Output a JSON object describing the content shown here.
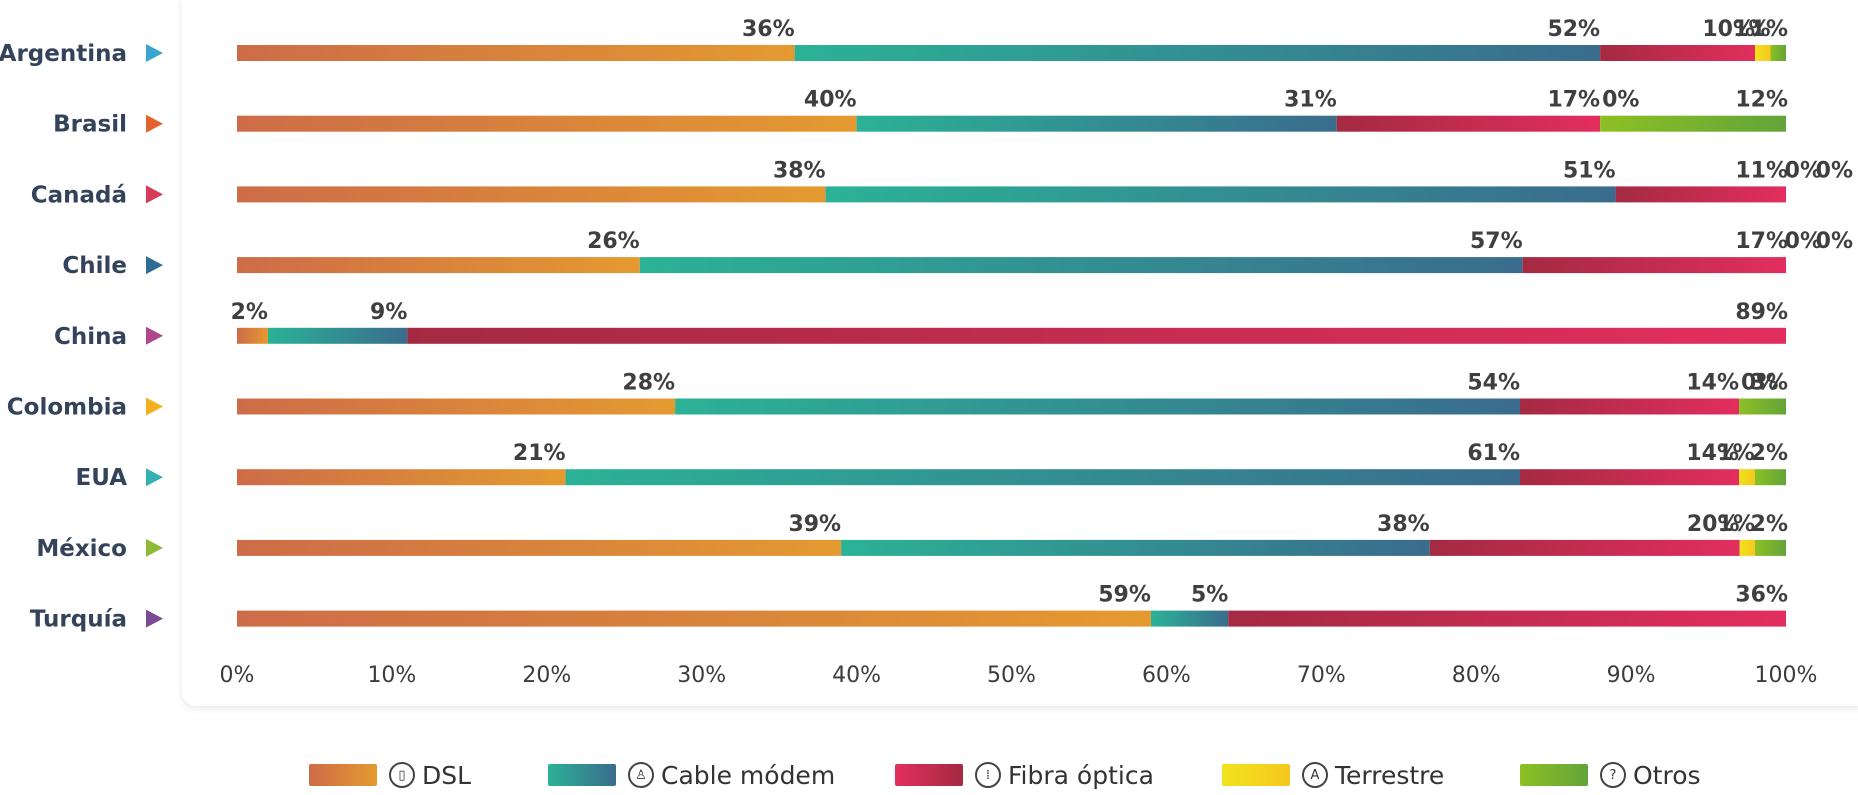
{
  "chart_data": {
    "type": "bar",
    "orientation": "horizontal",
    "stacked": true,
    "percent_stacked": true,
    "categories": [
      "Argentina",
      "Brasil",
      "Canadá",
      "Chile",
      "China",
      "Colombia",
      "EUA",
      "México",
      "Turquía"
    ],
    "category_marker_colors": [
      "#3aa6d0",
      "#e3612a",
      "#d83a5a",
      "#2f6c93",
      "#b0468e",
      "#f3b11e",
      "#35b0b3",
      "#8dbd33",
      "#7c4a93"
    ],
    "series": [
      {
        "name": "DSL",
        "icon": "phone-icon",
        "colors": [
          "#cd6c48",
          "#e49a30"
        ],
        "values": [
          36,
          40,
          38,
          26,
          2,
          28,
          21,
          39,
          59
        ],
        "labels": [
          "36%",
          "40%",
          "38%",
          "26%",
          "2%",
          "28%",
          "21%",
          "39%",
          "59%"
        ]
      },
      {
        "name": "Cable módem",
        "icon": "cable-modem-icon",
        "colors": [
          "#2bb296",
          "#3a6c8d"
        ],
        "values": [
          52,
          31,
          51,
          57,
          9,
          54,
          61,
          38,
          5
        ],
        "labels": [
          "52%",
          "31%",
          "51%",
          "57%",
          "9%",
          "54%",
          "61%",
          "38%",
          "5%"
        ]
      },
      {
        "name": "Fibra óptica",
        "icon": "fiber-icon",
        "colors": [
          "#a42a42",
          "#e22e5e"
        ],
        "values": [
          10,
          17,
          11,
          17,
          89,
          14,
          14,
          20,
          36
        ],
        "labels": [
          "10%",
          "17%",
          "11%",
          "17%",
          "89%",
          "14%",
          "14%",
          "20%",
          "36%"
        ]
      },
      {
        "name": "Terrestre",
        "icon": "antenna-icon",
        "colors": [
          "#f2e21d",
          "#f5c81e"
        ],
        "values": [
          1,
          0,
          0,
          0,
          0,
          0,
          1,
          1,
          0
        ],
        "labels": [
          "1%",
          "0%",
          "0%",
          "0%",
          null,
          "0%",
          "1%",
          "1%",
          null
        ]
      },
      {
        "name": "Otros",
        "icon": "question-icon",
        "colors": [
          "#8dc023",
          "#63a43a"
        ],
        "values": [
          1,
          12,
          0,
          0,
          0,
          3,
          2,
          2,
          0
        ],
        "labels": [
          "1%",
          "12%",
          "0%",
          "0%",
          null,
          "3%",
          "2%",
          "2%",
          null
        ]
      }
    ],
    "xlim": [
      0,
      100
    ],
    "x_ticks": [
      "0%",
      "10%",
      "20%",
      "30%",
      "40%",
      "50%",
      "60%",
      "70%",
      "80%",
      "90%",
      "100%"
    ],
    "grid": false,
    "legend_position": "bottom"
  },
  "legend": {
    "items": [
      {
        "label": "DSL",
        "glyph": "▯"
      },
      {
        "label": "Cable módem",
        "glyph": "♙"
      },
      {
        "label": "Fibra óptica",
        "glyph": "⁞"
      },
      {
        "label": "Terrestre",
        "glyph": "A"
      },
      {
        "label": "Otros",
        "glyph": "?"
      }
    ]
  }
}
